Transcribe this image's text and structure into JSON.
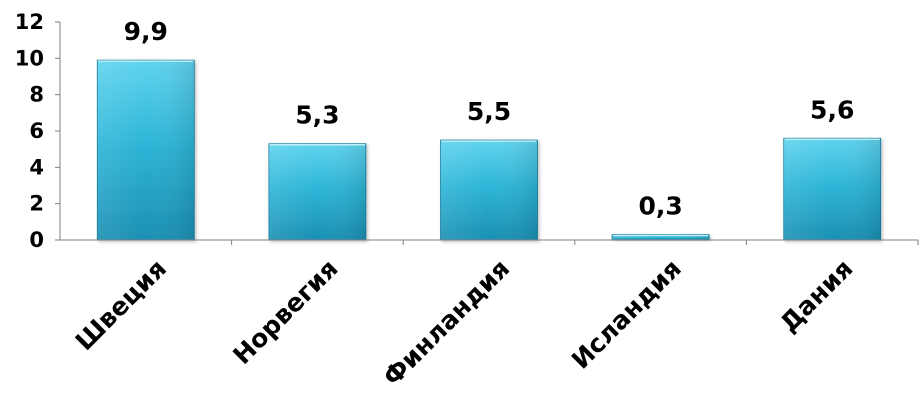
{
  "chart_data": {
    "type": "bar",
    "categories": [
      "Швеция",
      "Норвегия",
      "Финландия",
      "Исландия",
      "Дания"
    ],
    "values": [
      9.9,
      5.3,
      5.5,
      0.3,
      5.6
    ],
    "data_labels": [
      "9,9",
      "5,3",
      "5,5",
      "0,3",
      "5,6"
    ],
    "y_ticks": [
      0,
      2,
      4,
      6,
      8,
      10,
      12
    ],
    "y_tick_labels": [
      "0",
      "2",
      "4",
      "6",
      "8",
      "10",
      "12"
    ],
    "ylim": [
      0,
      12
    ],
    "title": "",
    "xlabel": "",
    "ylabel": "",
    "grid": false,
    "legend": "none",
    "colors": {
      "bar_top": "#5fd3ee",
      "bar_mid": "#2eb6d8",
      "bar_bottom": "#1a8fb3",
      "bar_edge": "#137a99",
      "axis": "#7f7f7f"
    }
  }
}
